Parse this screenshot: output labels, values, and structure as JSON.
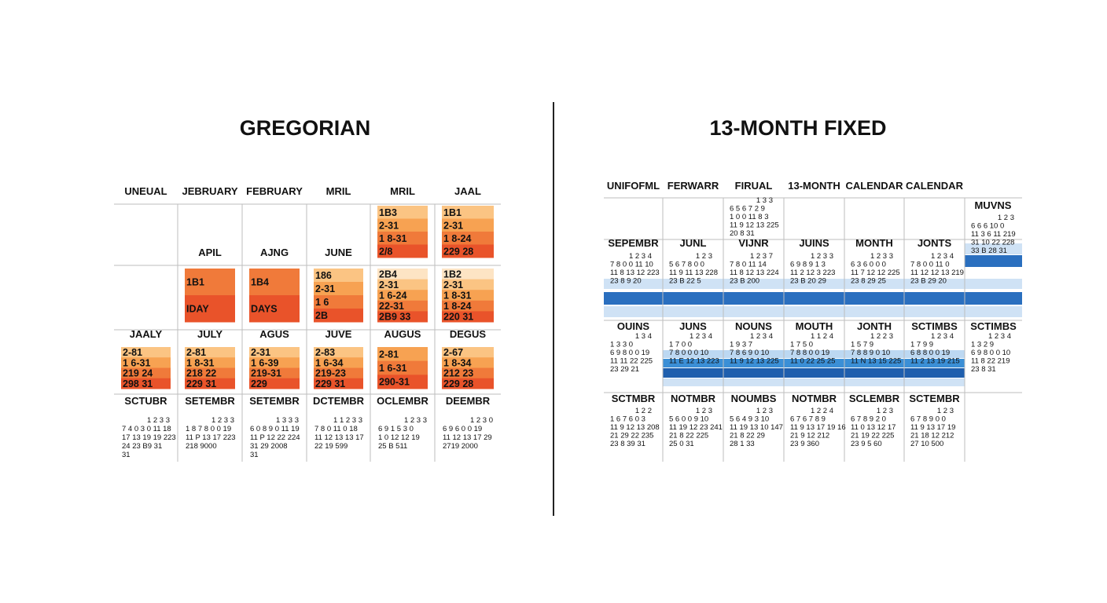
{
  "gregorian": {
    "title": "GREGORIAN",
    "bands": [
      {
        "labels": [
          "UNEUAL",
          "JEBRUARY",
          "FEBRUARY",
          "MRIL",
          "MRIL",
          "JAAL"
        ],
        "blocks": [
          null,
          null,
          null,
          null,
          [
            "1B3",
            "2-31",
            "1 8-31",
            "2/8"
          ],
          [
            "1B1",
            "2-31",
            "1 8-24",
            "229 28"
          ]
        ]
      },
      {
        "labels": [
          null,
          "APIL",
          "AJNG",
          "JUNE",
          null,
          null
        ],
        "blocks": [
          null,
          [
            "1B1",
            "IDAY"
          ],
          [
            "1B4",
            "DAYS"
          ],
          [
            "186",
            "2-31",
            "1 6",
            "2B"
          ],
          [
            "2B4",
            "2-31",
            "1 6-24",
            "22-31",
            "2B9 33"
          ],
          [
            "1B2",
            "2-31",
            "1 8-31",
            "1 8-24",
            "220 31"
          ]
        ]
      },
      {
        "labels": [
          "JAALY",
          "JULY",
          "AGUS",
          "JUVE",
          "AUGUS",
          "DEGUS"
        ],
        "blocks": [
          [
            "2-81",
            "1 6-31",
            "219 24",
            "298 31"
          ],
          [
            "2-81",
            "1 8-31",
            "218 22",
            "229 31"
          ],
          [
            "2-31",
            "1 6-39",
            "219-31",
            "229"
          ],
          [
            "2-83",
            "1 6-34",
            "219-23",
            "229 31"
          ],
          [
            "2-81",
            "1 6-31",
            "290-31"
          ],
          [
            "2-67",
            "1 8-34",
            "212 23",
            "229 28"
          ]
        ]
      },
      {
        "labels": [
          "SCTUBR",
          "SETEMBR",
          "SETEMBR",
          "DCTEMBR",
          "OCLEMBR",
          "DEEMBR"
        ],
        "days": [
          [
            "1 2 3 3",
            "7 4 0 3 0 11 18",
            "17 13 19 19 223",
            "24 23 B9 31",
            "31"
          ],
          [
            "1 2 3 3",
            "1 8 7 8 0 0 19",
            "11 P 13 17 223",
            "218 9000"
          ],
          [
            "1 3 3 3",
            "6 0 8 9 0 11 19",
            "11 P 12 22 224",
            "31 29 2008",
            "31"
          ],
          [
            "1 1 2 3 3",
            "7 8 0 11 0 18",
            "11 12 13 13 17",
            "22 19 599"
          ],
          [
            "1 2 3 3",
            "6 9 1 5 3 0",
            "1 0 12 12 19",
            "25 B 511"
          ],
          [
            "1 2 3 0",
            "6 9 6 0 0 19",
            "11 12 13 17 29",
            "2719 2000"
          ]
        ]
      }
    ]
  },
  "fixed": {
    "title": "13-MONTH FIXED",
    "bands": [
      {
        "labels": [
          "UNIFOFML",
          "FERWARR",
          "FIRUAL",
          "13-MONTH",
          "CALENDAR",
          "CALENDAR",
          null
        ],
        "days": [
          null,
          null,
          [
            "1 3 3",
            "6 5 6 7 2 9",
            "1 0 0 11 8 3",
            "11 9 12 13 225",
            "20 8 31"
          ],
          null,
          null,
          null,
          null
        ]
      },
      {
        "labels": [
          "SEPEMBR",
          "JUNL",
          "VIJNR",
          "JUINS",
          "MONTH",
          "JONTS",
          null
        ],
        "days": [
          [
            "1 2 3 4",
            "7 8 0 0 11 10",
            "11 8 13 12 223",
            "23 8 9 20"
          ],
          [
            "1 2 3",
            "5 6 7 8 0 0",
            "11 9 11 13 228",
            "23 B 22 5"
          ],
          [
            "1 2 3 7",
            "7 8 0 11 14",
            "11 8 12 13 224",
            "23 B 200"
          ],
          [
            "1 2 3 3",
            "6 9 8 9 1 3",
            "11 2 12 3 223",
            "23 B 20 29"
          ],
          [
            "1 2 3 3",
            "6 3 6 0 0 0",
            "11 7 12 12 225",
            "23 8 29 25"
          ],
          [
            "1 2 3 4",
            "7 8 0 0 11 0",
            "11 12 12 13 219",
            "23 B 29 20"
          ],
          null
        ]
      },
      {
        "labels": [
          "OUINS",
          "JUNS",
          "NOUNS",
          "MOUTH",
          "JONTH",
          "SCTIMBS",
          "SCTIMBS"
        ],
        "days": [
          [
            "1 3 4",
            "1 3 3 0",
            "6 9 8 0 0 19",
            "11 11 22 225",
            "23 29 21"
          ],
          [
            "1 2 3 4",
            "1 7 0 0",
            "7 8 0 0 0 10",
            "11 E 12 13 223"
          ],
          [
            "1 2 3 4",
            "1 9 3 7",
            "7 8 6 9 0 10",
            "11 9 12 13 225"
          ],
          [
            "1 1 2 4",
            "1 7 5 0",
            "7 8 8 0 0 19",
            "11 0 22 25 25"
          ],
          [
            "1 2 2 3",
            "1 5 7 9",
            "7 8 8 9 0 10",
            "11 N 13 15 225"
          ],
          [
            "1 2 3 4",
            "1 7 9 9",
            "6 8 8 0 0 19",
            "11 2 13 19 215"
          ],
          [
            "1 2 3 4",
            "1 3 2 9",
            "6 9 8 0 0 10",
            "11 8 22 219",
            "23 8 31"
          ]
        ]
      },
      {
        "labels": [
          "SCTMBR",
          "NOTMBR",
          "NOUMBS",
          "NOTMBR",
          "SCLEMBR",
          "SCTEMBR",
          null
        ],
        "days": [
          [
            "1 2 2",
            "1 6 7 6 0 3",
            "11 9 12 13 208",
            "21 29 22 235",
            "23 8 39 31"
          ],
          [
            "1 2 3",
            "5 6 0 0 9 10",
            "11 19 12 23 241",
            "21 8 22 225",
            "25 0 31"
          ],
          [
            "1 2 3",
            "5 6 4 9 3 10",
            "11 19 13 10 147",
            "21 8 22 29",
            "28 1 33"
          ],
          [
            "1 2 2 4",
            "6 7 6 7 8 9",
            "11 9 13 17 19 16",
            "21 9 12 212",
            "23 9 360"
          ],
          [
            "1 2 3",
            "6 7 8 9 2 0",
            "11 0 13 12 17",
            "21 19 22 225",
            "23 9 5 60"
          ],
          [
            "1 2 3",
            "6 7 8 9 0 0",
            "11 9 13 17 19",
            "21 18 12 212",
            "27 10 500"
          ],
          null
        ]
      }
    ],
    "side": {
      "label": "MUVNS",
      "days": [
        "1 2 3",
        "6 6 6 10 0",
        "11 3 6 11 219",
        "31 10 22 228",
        "33 B 28 31"
      ]
    }
  }
}
